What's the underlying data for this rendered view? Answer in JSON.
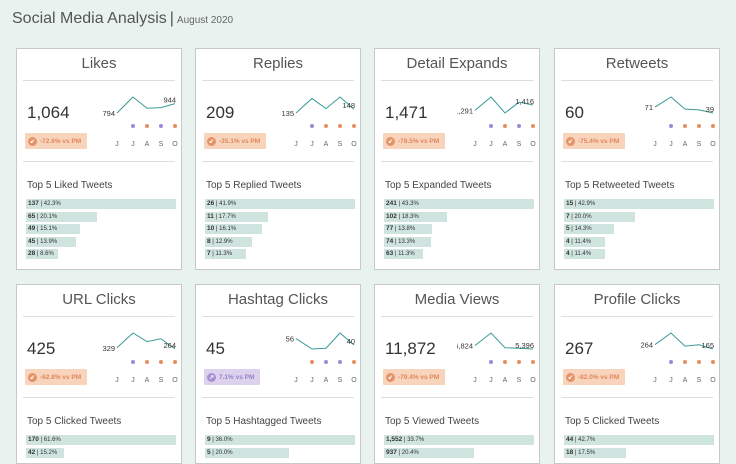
{
  "header": {
    "title": "Social Media Analysis",
    "separator": "|",
    "subtitle": "August 2020"
  },
  "months": [
    "J",
    "J",
    "A",
    "S",
    "O"
  ],
  "colors": {
    "line": "#3a9a99",
    "dot_purple": "#9b8ad3",
    "dot_orange": "#e58f5e",
    "bar": "#cfe3df",
    "down_bg": "#f9d4bc",
    "up_bg": "#ddd2ee"
  },
  "cards": [
    {
      "title": "Likes",
      "value": "1,064",
      "spark": [
        794,
        1050,
        870,
        880,
        944
      ],
      "spark_first": "794",
      "spark_last": "944",
      "dots": [
        "purple",
        "orange",
        "purple",
        "orange"
      ],
      "change": "-72.6% vs PM",
      "trend": "down",
      "icon": "arrow-down-left-icon",
      "top_label": "Top 5 Liked Tweets",
      "top": [
        {
          "n": "137",
          "p": "42.3%",
          "w": 100
        },
        {
          "n": "65",
          "p": "20.1%",
          "w": 47
        },
        {
          "n": "49",
          "p": "15.1%",
          "w": 36
        },
        {
          "n": "45",
          "p": "13.9%",
          "w": 33
        },
        {
          "n": "28",
          "p": "8.6%",
          "w": 21
        }
      ]
    },
    {
      "title": "Replies",
      "value": "209",
      "spark": [
        135,
        185,
        150,
        190,
        148
      ],
      "spark_first": "135",
      "spark_last": "148",
      "dots": [
        "purple",
        "orange",
        "orange",
        "orange"
      ],
      "change": "-35.1% vs PM",
      "trend": "down",
      "icon": "arrow-down-left-icon",
      "top_label": "Top 5 Replied Tweets",
      "top": [
        {
          "n": "26",
          "p": "41.9%",
          "w": 100
        },
        {
          "n": "11",
          "p": "17.7%",
          "w": 42
        },
        {
          "n": "10",
          "p": "16.1%",
          "w": 38
        },
        {
          "n": "8",
          "p": "12.9%",
          "w": 31
        },
        {
          "n": "7",
          "p": "11.3%",
          "w": 27
        }
      ]
    },
    {
      "title": "Detail Expands",
      "value": "1,471",
      "spark": [
        1291,
        1600,
        1230,
        1480,
        1416
      ],
      "spark_first": "1,291",
      "spark_last": "1,416",
      "dots": [
        "purple",
        "orange",
        "purple",
        "orange"
      ],
      "change": "-78.5% vs PM",
      "trend": "down",
      "icon": "arrow-down-left-icon",
      "top_label": "Top 5 Expanded Tweets",
      "top": [
        {
          "n": "241",
          "p": "43.3%",
          "w": 100
        },
        {
          "n": "102",
          "p": "18.3%",
          "w": 42
        },
        {
          "n": "77",
          "p": "13.8%",
          "w": 32
        },
        {
          "n": "74",
          "p": "13.3%",
          "w": 31
        },
        {
          "n": "63",
          "p": "11.3%",
          "w": 26
        }
      ]
    },
    {
      "title": "Retweets",
      "value": "60",
      "spark": [
        71,
        125,
        60,
        56,
        39
      ],
      "spark_first": "71",
      "spark_last": "39",
      "dots": [
        "purple",
        "orange",
        "orange",
        "orange"
      ],
      "change": "-75.4% vs PM",
      "trend": "down",
      "icon": "arrow-down-left-icon",
      "top_label": "Top 5 Retweeted Tweets",
      "top": [
        {
          "n": "15",
          "p": "42.9%",
          "w": 100
        },
        {
          "n": "7",
          "p": "20.0%",
          "w": 47
        },
        {
          "n": "5",
          "p": "14.3%",
          "w": 33
        },
        {
          "n": "4",
          "p": "11.4%",
          "w": 27
        },
        {
          "n": "4",
          "p": "11.4%",
          "w": 27
        }
      ]
    },
    {
      "title": "URL Clicks",
      "value": "425",
      "spark": [
        329,
        1100,
        650,
        800,
        264
      ],
      "spark_first": "329",
      "spark_last": "264",
      "dots": [
        "purple",
        "orange",
        "orange",
        "orange"
      ],
      "change": "-62.8% vs PM",
      "trend": "down",
      "icon": "arrow-down-left-icon",
      "top_label": "Top 5 Clicked Tweets",
      "top": [
        {
          "n": "170",
          "p": "61.6%",
          "w": 100
        },
        {
          "n": "42",
          "p": "15.2%",
          "w": 25
        }
      ]
    },
    {
      "title": "Hashtag Clicks",
      "value": "45",
      "spark": [
        56,
        30,
        32,
        70,
        40
      ],
      "spark_first": "56",
      "spark_last": "40",
      "dots": [
        "orange",
        "purple",
        "purple",
        "orange"
      ],
      "change": "7.1% vs PM",
      "trend": "up",
      "icon": "arrow-up-right-icon",
      "top_label": "Top 5 Hashtagged Tweets",
      "top": [
        {
          "n": "9",
          "p": "36.0%",
          "w": 100
        },
        {
          "n": "5",
          "p": "20.0%",
          "w": 56
        }
      ]
    },
    {
      "title": "Media Views",
      "value": "11,872",
      "spark": [
        6824,
        12000,
        5900,
        5700,
        5396
      ],
      "spark_first": "6,824",
      "spark_last": "5,396",
      "dots": [
        "purple",
        "orange",
        "orange",
        "orange"
      ],
      "change": "-79.4% vs PM",
      "trend": "down",
      "icon": "arrow-down-left-icon",
      "top_label": "Top 5 Viewed Tweets",
      "top": [
        {
          "n": "1,552",
          "p": "33.7%",
          "w": 100
        },
        {
          "n": "937",
          "p": "20.4%",
          "w": 60
        }
      ]
    },
    {
      "title": "Profile Clicks",
      "value": "267",
      "spark": [
        264,
        520,
        230,
        260,
        165
      ],
      "spark_first": "264",
      "spark_last": "165",
      "dots": [
        "purple",
        "orange",
        "orange",
        "orange"
      ],
      "change": "-82.0% vs PM",
      "trend": "down",
      "icon": "arrow-down-left-icon",
      "top_label": "Top 5 Clicked Tweets",
      "top": [
        {
          "n": "44",
          "p": "42.7%",
          "w": 100
        },
        {
          "n": "18",
          "p": "17.5%",
          "w": 41
        }
      ]
    }
  ]
}
